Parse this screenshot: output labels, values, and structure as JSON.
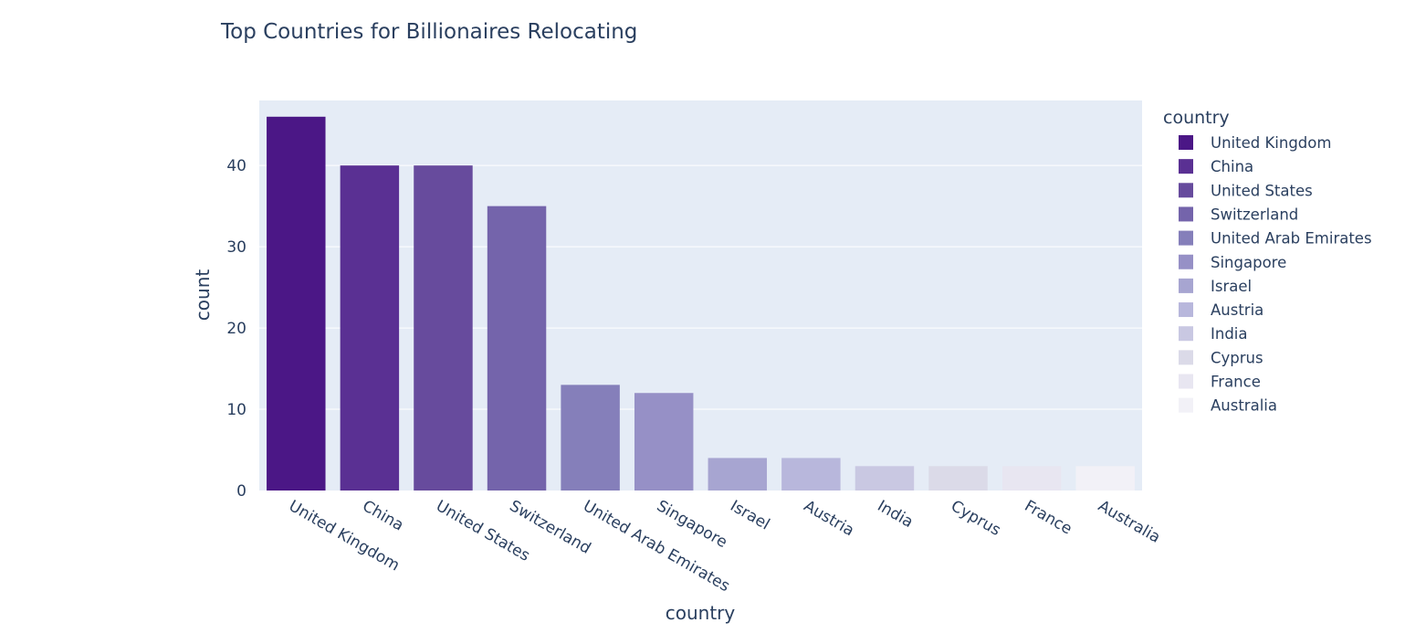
{
  "chart_data": {
    "type": "bar",
    "title": "Top Countries for Billionaires Relocating",
    "xlabel": "country",
    "ylabel": "count",
    "legend_title": "country",
    "legend_position": "right",
    "grid": true,
    "ylim": [
      0,
      48
    ],
    "yticks": [
      0,
      10,
      20,
      30,
      40
    ],
    "categories": [
      "United Kingdom",
      "China",
      "United States",
      "Switzerland",
      "United Arab Emirates",
      "Singapore",
      "Israel",
      "Austria",
      "India",
      "Cyprus",
      "France",
      "Australia"
    ],
    "values": [
      46,
      40,
      40,
      35,
      13,
      12,
      4,
      4,
      3,
      3,
      3,
      3
    ],
    "colors": [
      "#4b1786",
      "#5a3093",
      "#674b9d",
      "#7464ab",
      "#857fba",
      "#9690c6",
      "#a7a5d1",
      "#b8b7dc",
      "#c9c8e2",
      "#dbdae8",
      "#e8e6f1",
      "#f2f1f7"
    ]
  }
}
